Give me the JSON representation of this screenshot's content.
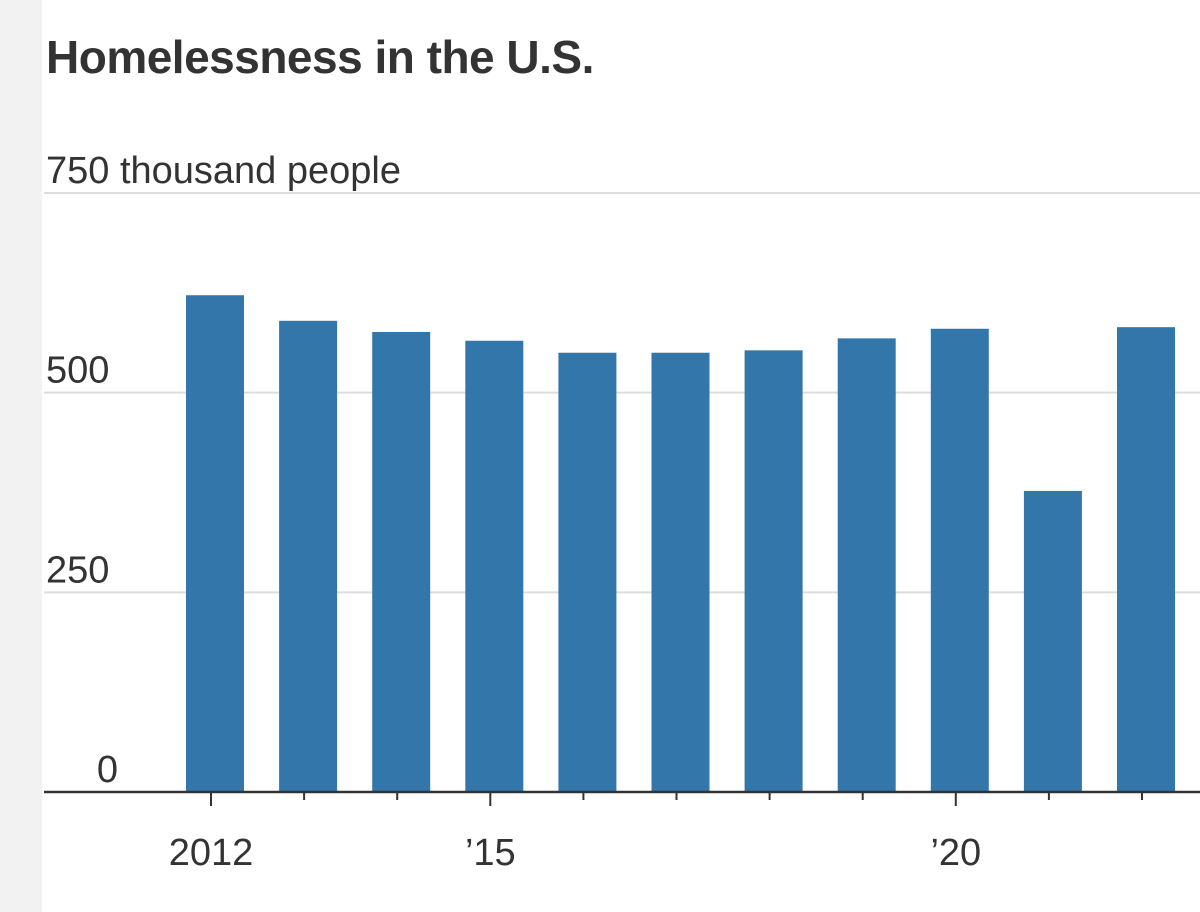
{
  "chart_data": {
    "type": "bar",
    "title": "Homelessness in the U.S.",
    "ylabel": "thousand people",
    "unit_label": "750 thousand people",
    "categories": [
      "2012",
      "2013",
      "2014",
      "2015",
      "2016",
      "2017",
      "2018",
      "2019",
      "2020",
      "2021",
      "2022"
    ],
    "values": [
      622,
      590,
      576,
      565,
      550,
      550,
      553,
      568,
      580,
      377,
      582
    ],
    "ylim": [
      0,
      750
    ],
    "y_ticks": [
      {
        "value": 750,
        "label": "750 thousand people"
      },
      {
        "value": 500,
        "label": "500"
      },
      {
        "value": 250,
        "label": "250"
      },
      {
        "value": 0,
        "label": "0"
      }
    ],
    "x_ticks": [
      {
        "category": "2012",
        "label": "2012"
      },
      {
        "category": "2015",
        "label": "’15"
      },
      {
        "category": "2020",
        "label": "’20"
      }
    ],
    "bar_color": "#3377aa",
    "grid": true,
    "legend": "none"
  }
}
